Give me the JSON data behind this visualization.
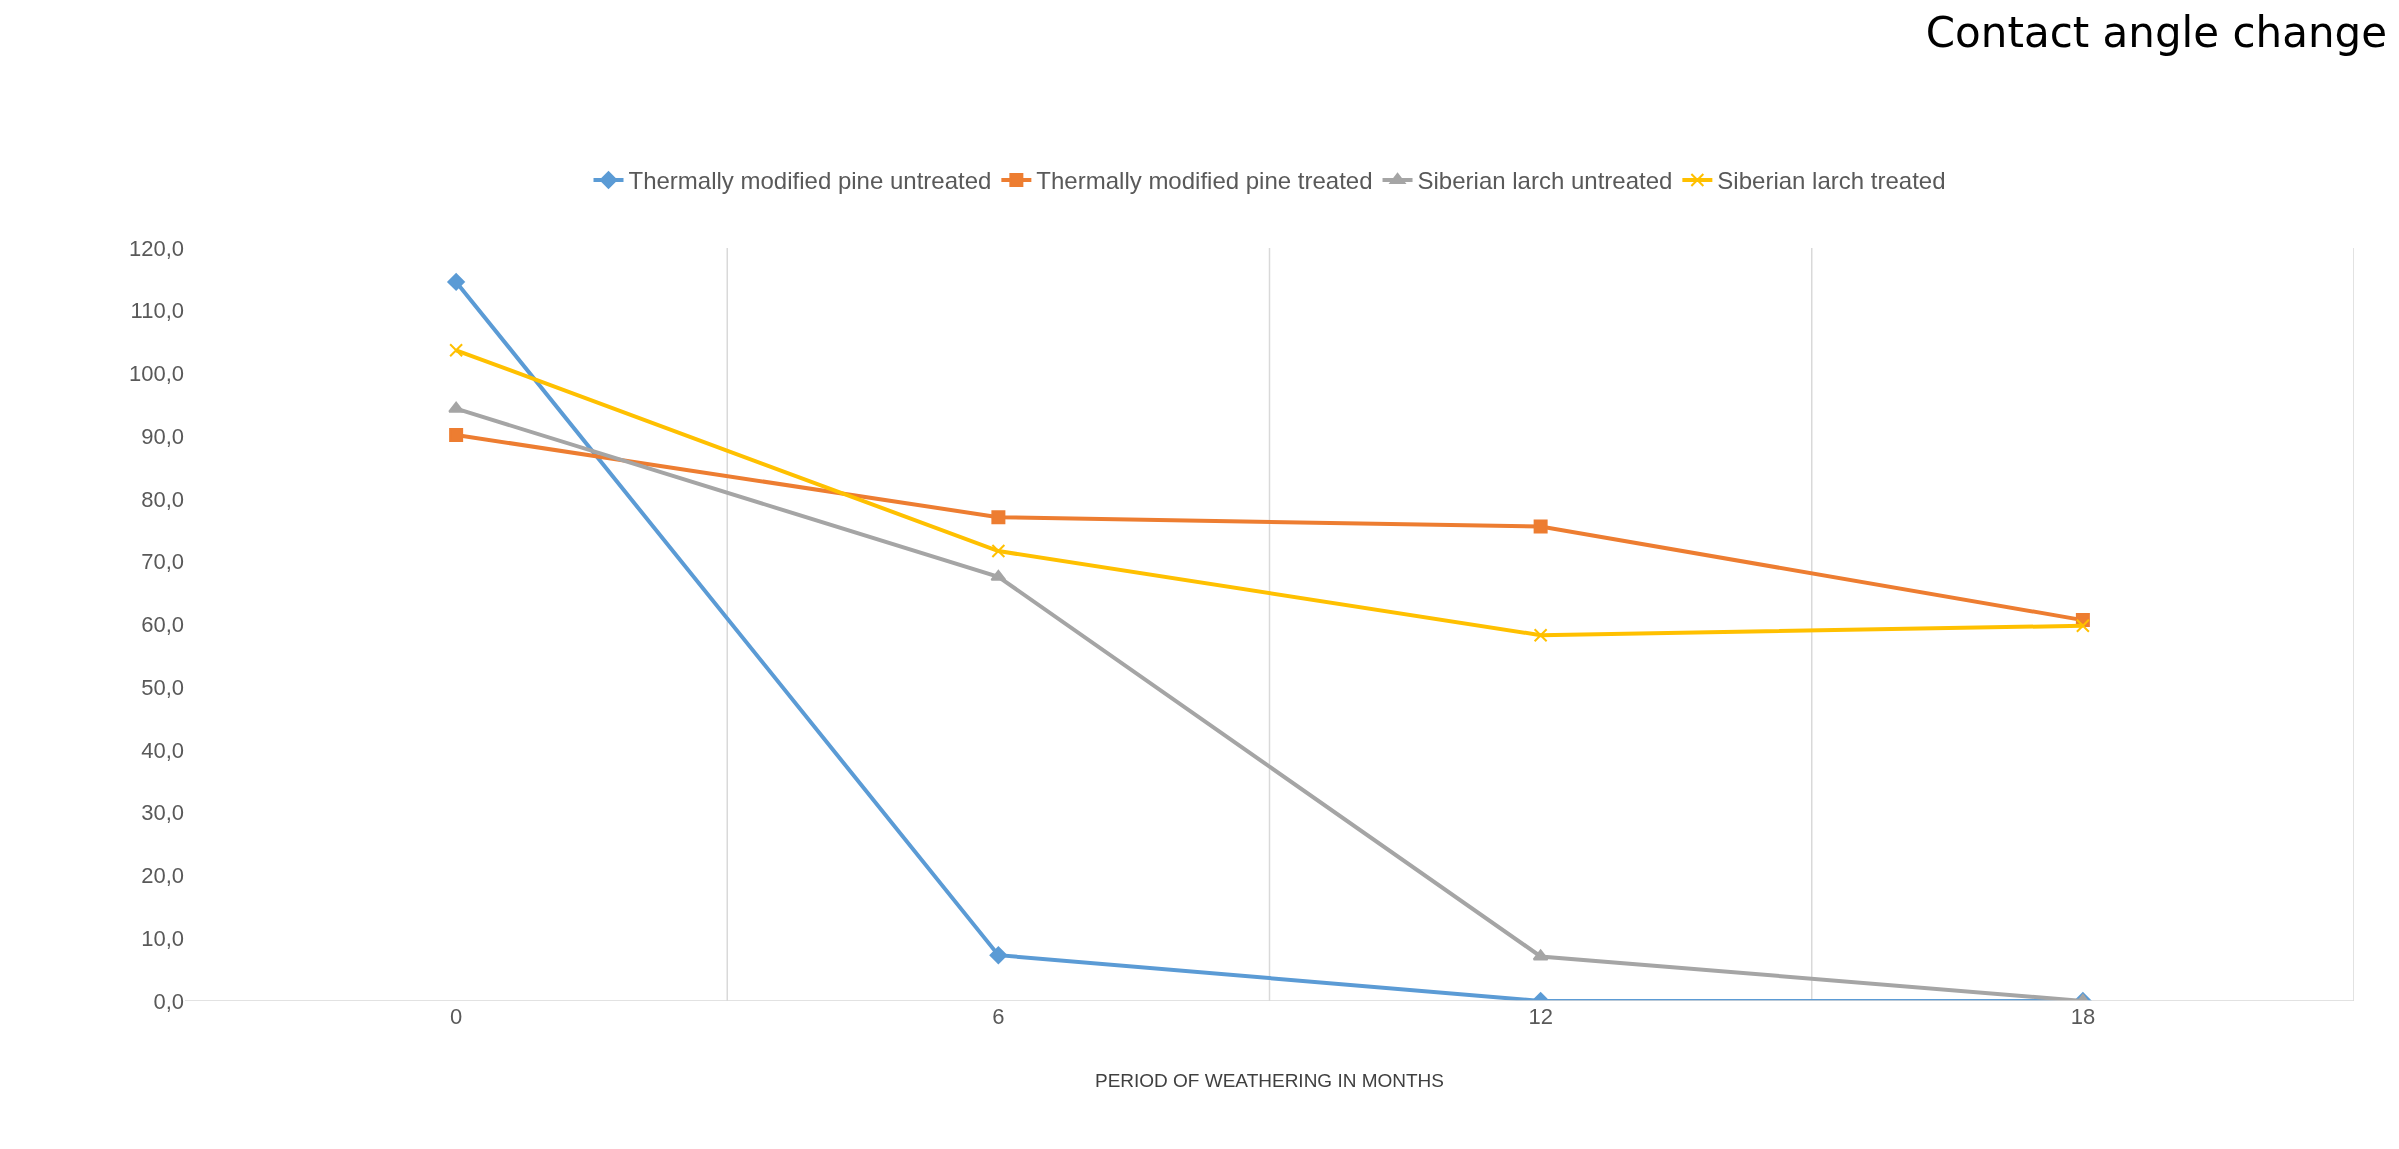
{
  "chart_data": {
    "type": "line",
    "title": "Contact angle change",
    "xlabel": "PERIOD OF WEATHERING IN MONTHS",
    "categories": [
      "0",
      "6",
      "12",
      "18"
    ],
    "series": [
      {
        "name": "Thermally modified pine untreated",
        "color": "#5b9bd5",
        "marker": "diamond",
        "values": [
          114.6,
          7.3,
          0,
          0
        ]
      },
      {
        "name": "Thermally modified pine treated",
        "color": "#ed7d31",
        "marker": "square",
        "values": [
          90.2,
          77.1,
          75.6,
          60.7
        ]
      },
      {
        "name": "Siberian larch untreated",
        "color": "#a5a5a5",
        "marker": "triangle",
        "values": [
          94.4,
          67.6,
          7.1,
          0
        ]
      },
      {
        "name": "Siberian larch treated",
        "color": "#ffc000",
        "marker": "cross",
        "values": [
          103.7,
          71.7,
          58.3,
          59.8
        ]
      }
    ],
    "ylim": [
      0,
      120
    ],
    "yticks": [
      {
        "value": 0,
        "label": "0,0"
      },
      {
        "value": 10,
        "label": "10,0"
      },
      {
        "value": 20,
        "label": "20,0"
      },
      {
        "value": 30,
        "label": "30,0"
      },
      {
        "value": 40,
        "label": "40,0"
      },
      {
        "value": 50,
        "label": "50,0"
      },
      {
        "value": 60,
        "label": "60,0"
      },
      {
        "value": 70,
        "label": "70,0"
      },
      {
        "value": 80,
        "label": "80,0"
      },
      {
        "value": 90,
        "label": "90,0"
      },
      {
        "value": 100,
        "label": "100,0"
      },
      {
        "value": 110,
        "label": "110,0"
      },
      {
        "value": 120,
        "label": "120,0"
      }
    ],
    "grid": "x",
    "legend": "top",
    "line_style": "solid"
  }
}
